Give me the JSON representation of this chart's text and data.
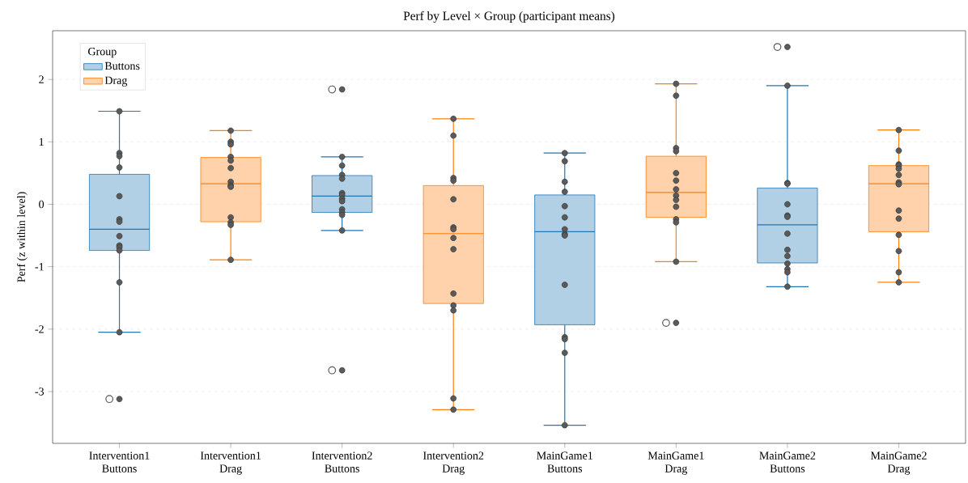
{
  "chart_data": {
    "type": "box",
    "title": "Perf by Level × Group (participant means)",
    "ylabel": "Perf (z within level)",
    "legend_title": "Group",
    "legend": "top left",
    "grid": "y",
    "categories": [
      "Intervention1 Buttons",
      "Intervention1 Drag",
      "Intervention2 Buttons",
      "Intervention2 Drag",
      "MainGame1 Buttons",
      "MainGame1 Drag",
      "MainGame2 Buttons",
      "MainGame2 Drag"
    ],
    "ylim": [
      -3.83,
      2.78
    ],
    "yticks": [
      -3,
      -2,
      -1,
      0,
      1,
      2
    ],
    "series": [
      {
        "name": "Buttons",
        "color": "#1f77b4",
        "boxes": [
          {
            "low": -2.05,
            "q1": -0.74,
            "median": -0.4,
            "q3": 0.48,
            "high": 1.49,
            "outliers": [
              -3.12
            ]
          },
          null,
          {
            "low": -0.42,
            "q1": -0.13,
            "median": 0.13,
            "q3": 0.46,
            "high": 0.76,
            "outliers": [
              1.84,
              -2.66
            ]
          },
          null,
          {
            "low": -3.54,
            "q1": -1.93,
            "median": -0.44,
            "q3": 0.15,
            "high": 0.82
          },
          null,
          {
            "low": -1.32,
            "q1": -0.94,
            "median": -0.33,
            "q3": 0.26,
            "high": 1.9,
            "outliers": [
              2.52
            ]
          },
          null
        ]
      },
      {
        "name": "Drag",
        "color": "#ff7f0e",
        "boxes": [
          null,
          {
            "low": -0.89,
            "q1": -0.28,
            "median": 0.33,
            "q3": 0.75,
            "high": 1.18
          },
          null,
          {
            "low": -3.29,
            "q1": -1.59,
            "median": -0.47,
            "q3": 0.3,
            "high": 1.37
          },
          null,
          {
            "low": -0.92,
            "q1": -0.21,
            "median": 0.19,
            "q3": 0.77,
            "high": 1.93,
            "outliers": [
              -1.9
            ]
          },
          null,
          {
            "low": -1.25,
            "q1": -0.44,
            "median": 0.33,
            "q3": 0.62,
            "high": 1.19
          }
        ]
      },
      {
        "type": "scatter",
        "color": "#5a5a5a",
        "marker": "circle",
        "x": [
          "Intervention1 Buttons",
          "Intervention1 Buttons",
          "Intervention1 Buttons",
          "Intervention1 Buttons",
          "Intervention1 Buttons",
          "Intervention1 Buttons",
          "Intervention1 Buttons",
          "Intervention1 Buttons",
          "Intervention1 Buttons",
          "Intervention1 Buttons",
          "Intervention1 Buttons",
          "Intervention1 Buttons",
          "Intervention1 Buttons",
          "Intervention1 Buttons",
          "Intervention1 Drag",
          "Intervention1 Drag",
          "Intervention1 Drag",
          "Intervention1 Drag",
          "Intervention1 Drag",
          "Intervention1 Drag",
          "Intervention1 Drag",
          "Intervention1 Drag",
          "Intervention1 Drag",
          "Intervention1 Drag",
          "Intervention1 Drag",
          "Intervention1 Drag",
          "Intervention1 Drag",
          "Intervention2 Buttons",
          "Intervention2 Buttons",
          "Intervention2 Buttons",
          "Intervention2 Buttons",
          "Intervention2 Buttons",
          "Intervention2 Buttons",
          "Intervention2 Buttons",
          "Intervention2 Buttons",
          "Intervention2 Buttons",
          "Intervention2 Buttons",
          "Intervention2 Buttons",
          "Intervention2 Buttons",
          "Intervention2 Buttons",
          "Intervention2 Buttons",
          "Intervention2 Drag",
          "Intervention2 Drag",
          "Intervention2 Drag",
          "Intervention2 Drag",
          "Intervention2 Drag",
          "Intervention2 Drag",
          "Intervention2 Drag",
          "Intervention2 Drag",
          "Intervention2 Drag",
          "Intervention2 Drag",
          "Intervention2 Drag",
          "Intervention2 Drag",
          "Intervention2 Drag",
          "Intervention2 Drag",
          "MainGame1 Buttons",
          "MainGame1 Buttons",
          "MainGame1 Buttons",
          "MainGame1 Buttons",
          "MainGame1 Buttons",
          "MainGame1 Buttons",
          "MainGame1 Buttons",
          "MainGame1 Buttons",
          "MainGame1 Buttons",
          "MainGame1 Buttons",
          "MainGame1 Buttons",
          "MainGame1 Buttons",
          "MainGame1 Buttons",
          "MainGame1 Buttons",
          "MainGame1 Drag",
          "MainGame1 Drag",
          "MainGame1 Drag",
          "MainGame1 Drag",
          "MainGame1 Drag",
          "MainGame1 Drag",
          "MainGame1 Drag",
          "MainGame1 Drag",
          "MainGame1 Drag",
          "MainGame1 Drag",
          "MainGame1 Drag",
          "MainGame1 Drag",
          "MainGame1 Drag",
          "MainGame1 Drag",
          "MainGame2 Buttons",
          "MainGame2 Buttons",
          "MainGame2 Buttons",
          "MainGame2 Buttons",
          "MainGame2 Buttons",
          "MainGame2 Buttons",
          "MainGame2 Buttons",
          "MainGame2 Buttons",
          "MainGame2 Buttons",
          "MainGame2 Buttons",
          "MainGame2 Buttons",
          "MainGame2 Buttons",
          "MainGame2 Buttons",
          "MainGame2 Buttons",
          "MainGame2 Drag",
          "MainGame2 Drag",
          "MainGame2 Drag",
          "MainGame2 Drag",
          "MainGame2 Drag",
          "MainGame2 Drag",
          "MainGame2 Drag",
          "MainGame2 Drag",
          "MainGame2 Drag",
          "MainGame2 Drag",
          "MainGame2 Drag",
          "MainGame2 Drag",
          "MainGame2 Drag",
          "MainGame2 Drag"
        ],
        "values": [
          1.49,
          0.82,
          0.77,
          0.59,
          0.13,
          -0.24,
          -0.28,
          -0.51,
          -0.66,
          -0.69,
          -0.74,
          -1.25,
          -2.05,
          -3.12,
          1.18,
          1.0,
          0.96,
          0.76,
          0.7,
          0.58,
          0.36,
          0.3,
          0.28,
          -0.21,
          -0.29,
          -0.33,
          -0.89,
          1.84,
          0.76,
          0.62,
          0.47,
          0.41,
          0.18,
          0.15,
          0.09,
          0.05,
          -0.08,
          -0.13,
          -0.17,
          -0.42,
          -2.66,
          1.37,
          1.1,
          0.42,
          0.38,
          0.08,
          -0.37,
          -0.4,
          -0.54,
          -0.72,
          -1.43,
          -1.62,
          -1.7,
          -3.11,
          -3.29,
          0.82,
          0.69,
          0.36,
          0.2,
          -0.03,
          -0.21,
          -0.4,
          -0.48,
          -0.5,
          -1.29,
          -2.13,
          -2.16,
          -2.38,
          -3.54,
          1.93,
          1.74,
          0.9,
          0.85,
          0.5,
          0.38,
          0.24,
          0.14,
          0.07,
          -0.04,
          -0.24,
          -0.29,
          -0.92,
          -1.9,
          2.52,
          1.9,
          0.34,
          0.33,
          0.0,
          -0.18,
          -0.2,
          -0.47,
          -0.73,
          -0.83,
          -0.95,
          -1.04,
          -1.09,
          -1.32,
          1.19,
          0.86,
          0.64,
          0.62,
          0.57,
          0.47,
          0.35,
          0.32,
          -0.1,
          -0.23,
          -0.49,
          -0.75,
          -1.09,
          -1.25
        ]
      }
    ]
  }
}
